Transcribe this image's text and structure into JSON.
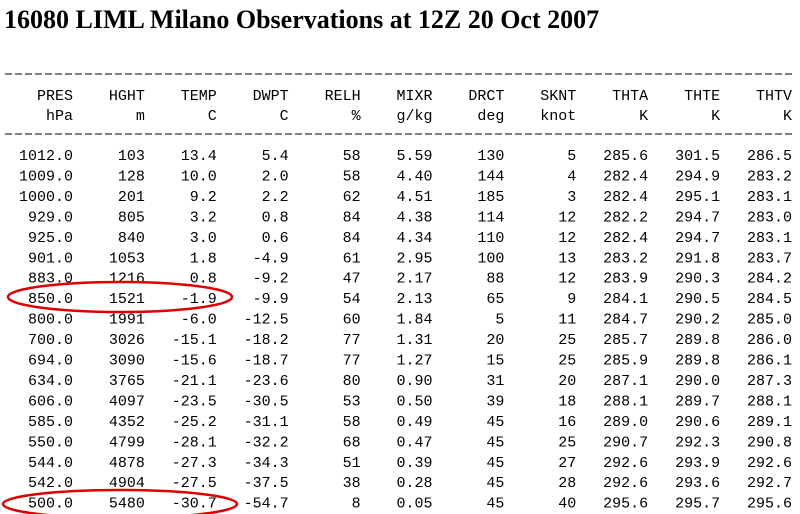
{
  "title": "16080 LIML Milano Observations at 12Z 20 Oct 2007",
  "table": {
    "columns": [
      [
        "PRES",
        "hPa"
      ],
      [
        "HGHT",
        "m"
      ],
      [
        "TEMP",
        "C"
      ],
      [
        "DWPT",
        "C"
      ],
      [
        "RELH",
        "%"
      ],
      [
        "MIXR",
        "g/kg"
      ],
      [
        "DRCT",
        "deg"
      ],
      [
        "SKNT",
        "knot"
      ],
      [
        "THTA",
        "K"
      ],
      [
        "THTE",
        "K"
      ],
      [
        "THTV",
        "K"
      ]
    ],
    "rows": [
      [
        "1012.0",
        "103",
        "13.4",
        "5.4",
        "58",
        "5.59",
        "130",
        "5",
        "285.6",
        "301.5",
        "286.5"
      ],
      [
        "1009.0",
        "128",
        "10.0",
        "2.0",
        "58",
        "4.40",
        "144",
        "4",
        "282.4",
        "294.9",
        "283.2"
      ],
      [
        "1000.0",
        "201",
        "9.2",
        "2.2",
        "62",
        "4.51",
        "185",
        "3",
        "282.4",
        "295.1",
        "283.1"
      ],
      [
        "929.0",
        "805",
        "3.2",
        "0.8",
        "84",
        "4.38",
        "114",
        "12",
        "282.2",
        "294.7",
        "283.0"
      ],
      [
        "925.0",
        "840",
        "3.0",
        "0.6",
        "84",
        "4.34",
        "110",
        "12",
        "282.4",
        "294.7",
        "283.1"
      ],
      [
        "901.0",
        "1053",
        "1.8",
        "-4.9",
        "61",
        "2.95",
        "100",
        "13",
        "283.2",
        "291.8",
        "283.7"
      ],
      [
        "883.0",
        "1216",
        "0.8",
        "-9.2",
        "47",
        "2.17",
        "88",
        "12",
        "283.9",
        "290.3",
        "284.2"
      ],
      [
        "850.0",
        "1521",
        "-1.9",
        "-9.9",
        "54",
        "2.13",
        "65",
        "9",
        "284.1",
        "290.5",
        "284.5"
      ],
      [
        "800.0",
        "1991",
        "-6.0",
        "-12.5",
        "60",
        "1.84",
        "5",
        "11",
        "284.7",
        "290.2",
        "285.0"
      ],
      [
        "700.0",
        "3026",
        "-15.1",
        "-18.2",
        "77",
        "1.31",
        "20",
        "25",
        "285.7",
        "289.8",
        "286.0"
      ],
      [
        "694.0",
        "3090",
        "-15.6",
        "-18.7",
        "77",
        "1.27",
        "15",
        "25",
        "285.9",
        "289.8",
        "286.1"
      ],
      [
        "634.0",
        "3765",
        "-21.1",
        "-23.6",
        "80",
        "0.90",
        "31",
        "20",
        "287.1",
        "290.0",
        "287.3"
      ],
      [
        "606.0",
        "4097",
        "-23.5",
        "-30.5",
        "53",
        "0.50",
        "39",
        "18",
        "288.1",
        "289.7",
        "288.1"
      ],
      [
        "585.0",
        "4352",
        "-25.2",
        "-31.1",
        "58",
        "0.49",
        "45",
        "16",
        "289.0",
        "290.6",
        "289.1"
      ],
      [
        "550.0",
        "4799",
        "-28.1",
        "-32.2",
        "68",
        "0.47",
        "45",
        "25",
        "290.7",
        "292.3",
        "290.8"
      ],
      [
        "544.0",
        "4878",
        "-27.3",
        "-34.3",
        "51",
        "0.39",
        "45",
        "27",
        "292.6",
        "293.9",
        "292.6"
      ],
      [
        "542.0",
        "4904",
        "-27.5",
        "-37.5",
        "38",
        "0.28",
        "45",
        "28",
        "292.6",
        "293.6",
        "292.7"
      ],
      [
        "500.0",
        "5480",
        "-30.7",
        "-54.7",
        "8",
        "0.05",
        "45",
        "40",
        "295.6",
        "295.7",
        "295.6"
      ]
    ]
  }
}
